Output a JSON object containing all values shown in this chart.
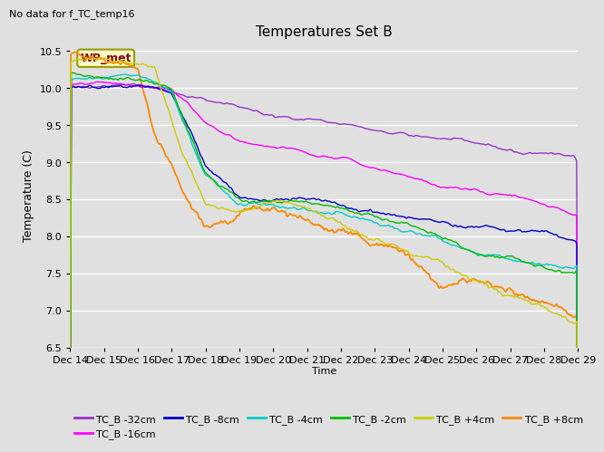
{
  "title": "Temperatures Set B",
  "subtitle": "No data for f_TC_temp16",
  "xlabel": "Time",
  "ylabel": "Temperature (C)",
  "ylim": [
    6.5,
    10.6
  ],
  "xlim": [
    0,
    360
  ],
  "x_tick_labels": [
    "Dec 14",
    "Dec 15",
    "Dec 16",
    "Dec 17",
    "Dec 18",
    "Dec 19",
    "Dec 20",
    "Dec 21",
    "Dec 22",
    "Dec 23",
    "Dec 24",
    "Dec 25",
    "Dec 26",
    "Dec 27",
    "Dec 28",
    "Dec 29"
  ],
  "x_tick_positions": [
    0,
    24,
    48,
    72,
    96,
    120,
    144,
    168,
    192,
    216,
    240,
    264,
    288,
    312,
    336,
    360
  ],
  "wp_met_label": "WP_met",
  "wp_met_color": "#880000",
  "wp_met_bg": "#ffffcc",
  "wp_met_edge": "#999900",
  "series_colors": {
    "TC_B -32cm": "#9932CC",
    "TC_B -16cm": "#ff00ff",
    "TC_B -8cm": "#0000cd",
    "TC_B -4cm": "#00cccc",
    "TC_B -2cm": "#00bb00",
    "TC_B +4cm": "#cccc00",
    "TC_B +8cm": "#ff8800"
  },
  "background_color": "#e0e0e0",
  "grid_color": "#ffffff",
  "legend_colors": [
    "#9932CC",
    "#ff00ff",
    "#0000cd",
    "#00cccc",
    "#00bb00",
    "#cccc00",
    "#ff8800"
  ],
  "legend_labels": [
    "TC_B -32cm",
    "TC_B -16cm",
    "TC_B -8cm",
    "TC_B -4cm",
    "TC_B -2cm",
    "TC_B +4cm",
    "TC_B +8cm"
  ]
}
